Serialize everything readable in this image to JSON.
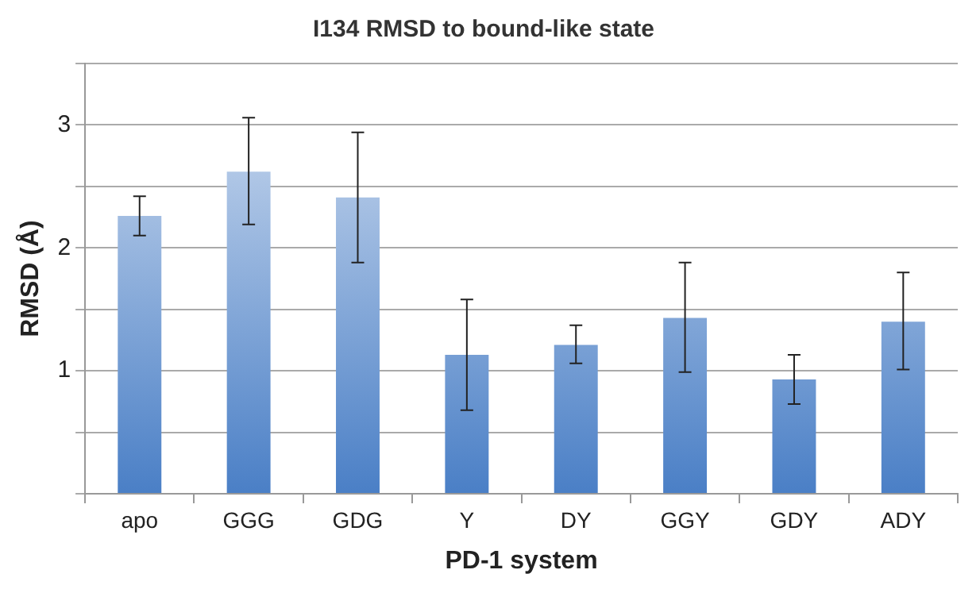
{
  "chart_data": {
    "type": "bar",
    "title": "I134 RMSD to bound-like state",
    "xlabel": "PD-1 system",
    "ylabel": "RMSD (Å)",
    "categories": [
      "apo",
      "GGG",
      "GDG",
      "Y",
      "DY",
      "GGY",
      "GDY",
      "ADY"
    ],
    "values": [
      2.26,
      2.62,
      2.41,
      1.13,
      1.21,
      1.43,
      0.93,
      1.4
    ],
    "errors": [
      [
        2.1,
        2.42
      ],
      [
        2.19,
        3.06
      ],
      [
        1.88,
        2.94
      ],
      [
        0.68,
        1.58
      ],
      [
        1.06,
        1.37
      ],
      [
        0.99,
        1.88
      ],
      [
        0.73,
        1.13
      ],
      [
        1.01,
        1.8
      ]
    ],
    "color": "#4a7fc6",
    "ylim": [
      0,
      3.5
    ],
    "yticks": [
      {
        "value": 0,
        "label": null
      },
      {
        "value": 0.5,
        "label": null
      },
      1,
      {
        "value": 1.5,
        "label": null
      },
      2,
      {
        "value": 2.5,
        "label": null
      },
      3,
      {
        "value": 3.5,
        "label": null
      }
    ],
    "grid": "y",
    "legend": false
  }
}
